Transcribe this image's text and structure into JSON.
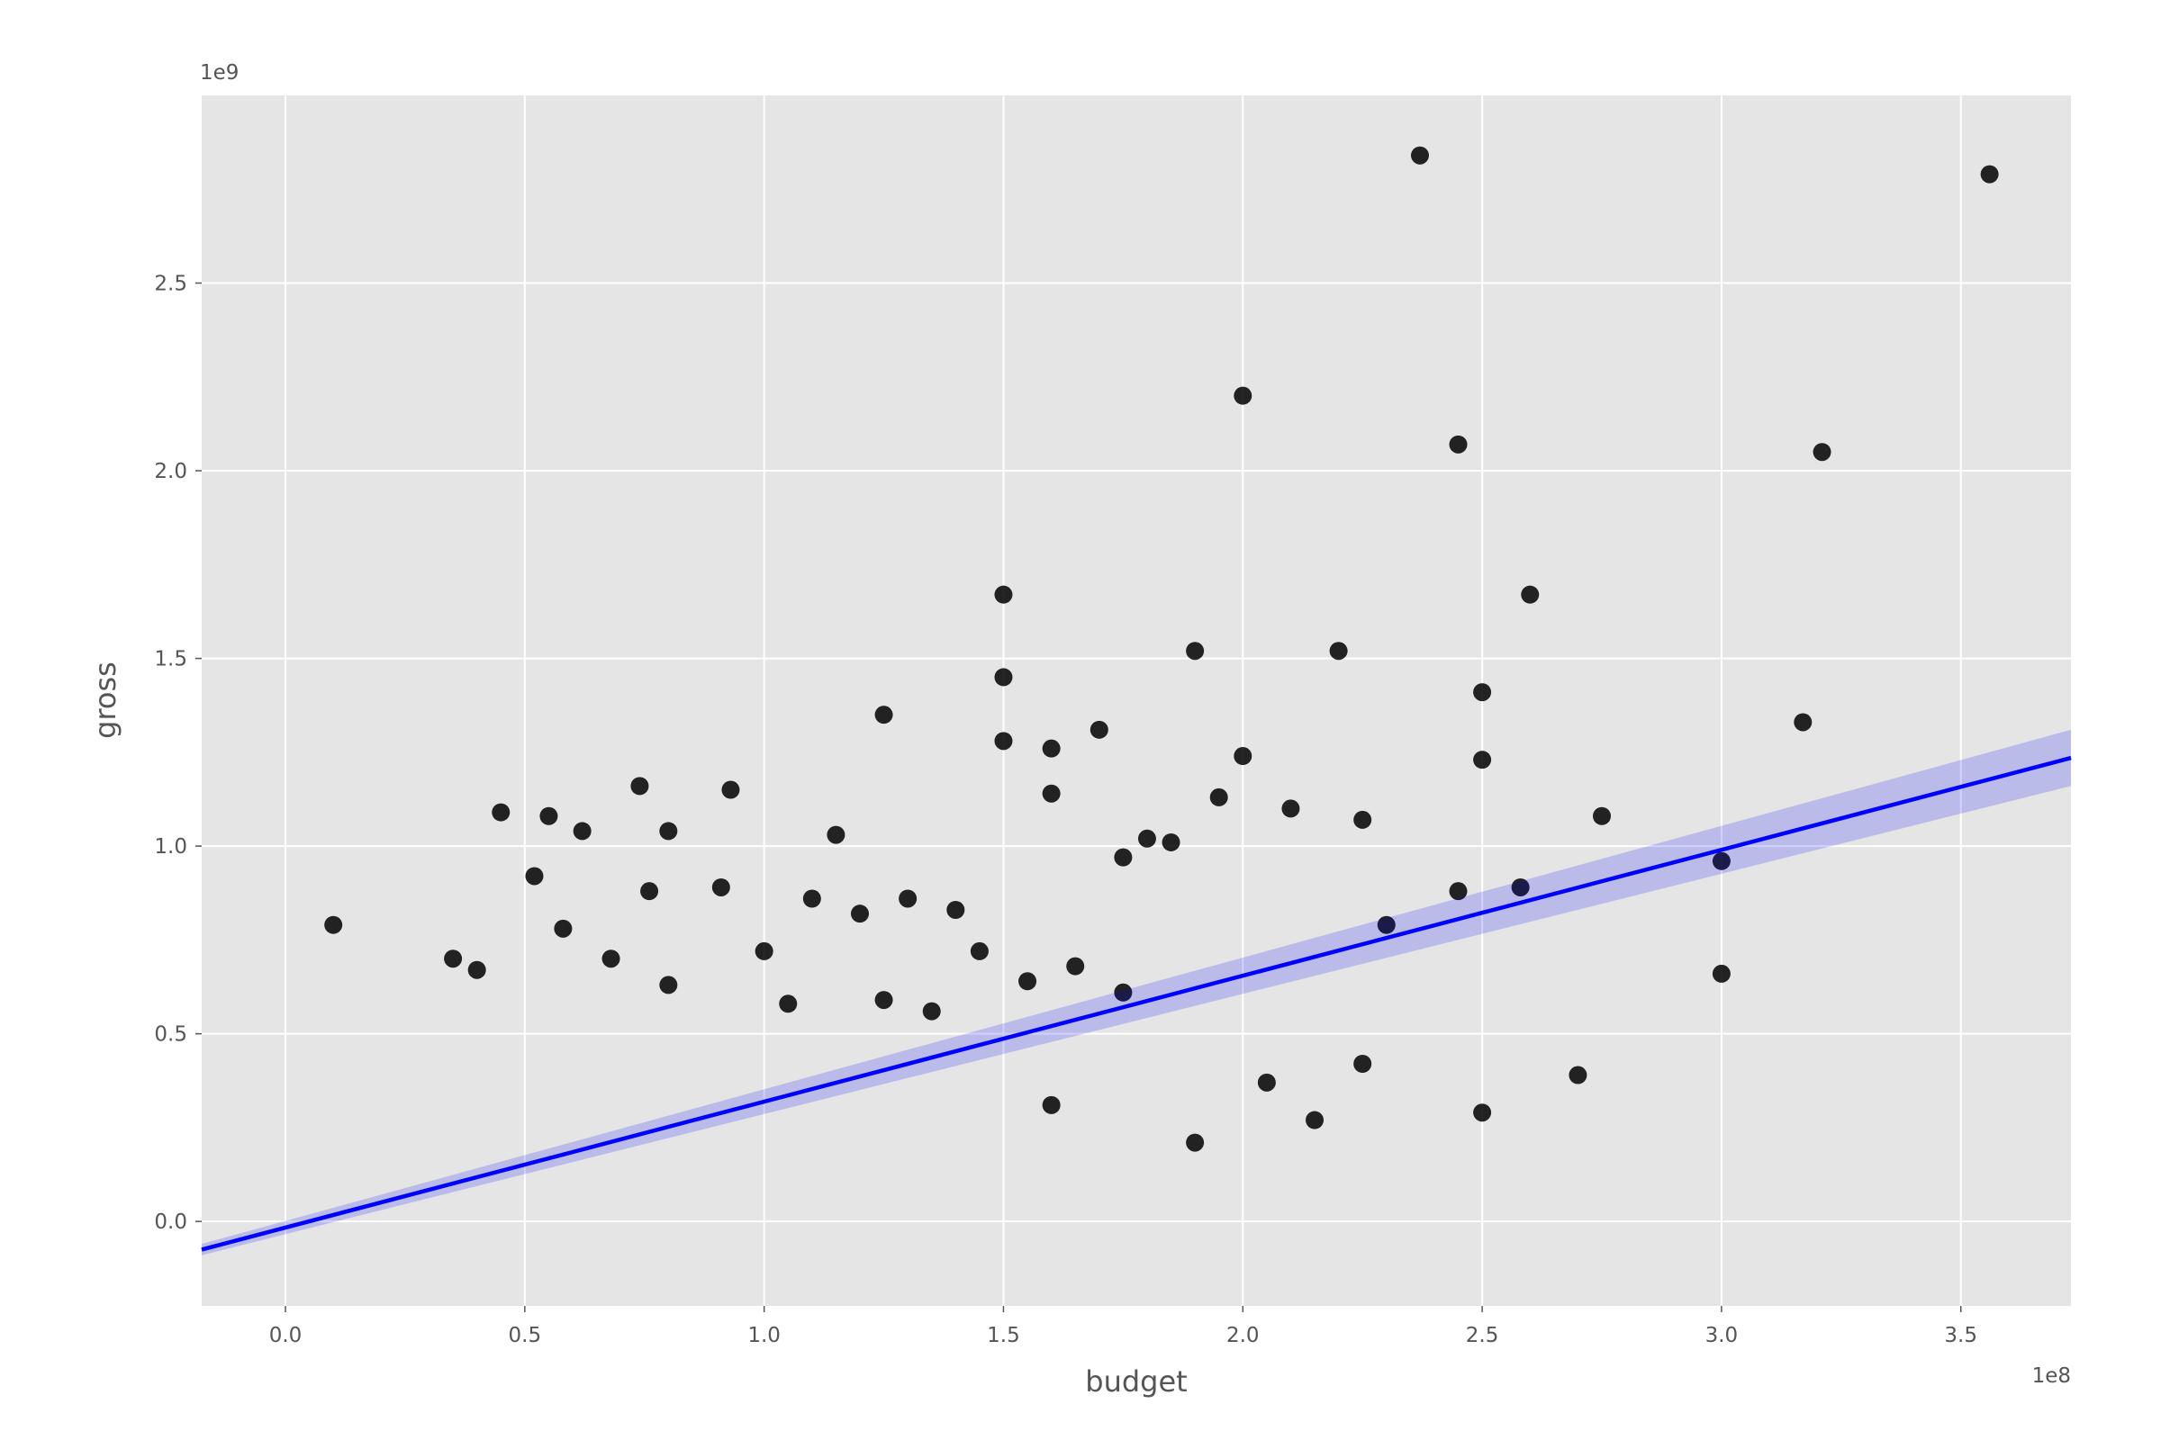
{
  "chart_data": {
    "type": "scatter",
    "title": "",
    "xlabel": "budget",
    "ylabel": "gross",
    "x_offset_label": "1e8",
    "y_offset_label": "1e9",
    "xlim": [
      -17500000,
      373000000
    ],
    "ylim": [
      -225000000,
      3000000000
    ],
    "grid": true,
    "x_ticks": [
      {
        "value": 0,
        "label": "0.0"
      },
      {
        "value": 50000000,
        "label": "0.5"
      },
      {
        "value": 100000000,
        "label": "1.0"
      },
      {
        "value": 150000000,
        "label": "1.5"
      },
      {
        "value": 200000000,
        "label": "2.0"
      },
      {
        "value": 250000000,
        "label": "2.5"
      },
      {
        "value": 300000000,
        "label": "3.0"
      },
      {
        "value": 350000000,
        "label": "3.5"
      }
    ],
    "y_ticks": [
      {
        "value": 0,
        "label": "0.0"
      },
      {
        "value": 500000000,
        "label": "0.5"
      },
      {
        "value": 1000000000,
        "label": "1.0"
      },
      {
        "value": 1500000000,
        "label": "1.5"
      },
      {
        "value": 2000000000,
        "label": "2.0"
      },
      {
        "value": 2500000000,
        "label": "2.5"
      }
    ],
    "regression": {
      "x": [
        -17500000,
        373000000
      ],
      "y": [
        -75000000,
        1235000000
      ],
      "ci_low": [
        -90000000,
        1160000000
      ],
      "ci_high": [
        -60000000,
        1310000000
      ]
    },
    "series": [
      {
        "x": [
          237000000,
          356000000,
          200000000,
          245000000,
          321000000,
          150000000,
          260000000,
          190000000,
          220000000,
          150000000,
          250000000,
          317000000,
          125000000,
          150000000,
          170000000,
          160000000,
          200000000,
          250000000,
          74000000,
          93000000,
          45000000,
          55000000,
          62000000,
          80000000,
          115000000,
          275000000,
          300000000,
          210000000,
          225000000,
          300000000,
          258000000,
          245000000,
          230000000,
          195000000,
          10000000,
          160000000,
          270000000,
          250000000,
          205000000,
          215000000,
          225000000,
          190000000,
          110000000,
          120000000,
          130000000,
          140000000,
          180000000,
          185000000,
          175000000,
          165000000,
          91000000,
          100000000,
          76000000,
          52000000,
          58000000,
          35000000,
          40000000,
          68000000,
          80000000,
          135000000,
          145000000,
          155000000,
          105000000,
          125000000,
          160000000,
          175000000
        ],
        "y": [
          2840000000,
          2790000000,
          2200000000,
          2070000000,
          2050000000,
          1670000000,
          1670000000,
          1520000000,
          1520000000,
          1450000000,
          1410000000,
          1330000000,
          1350000000,
          1280000000,
          1310000000,
          1260000000,
          1240000000,
          1230000000,
          1160000000,
          1150000000,
          1090000000,
          1080000000,
          1040000000,
          1040000000,
          1030000000,
          1080000000,
          960000000,
          1100000000,
          1070000000,
          660000000,
          890000000,
          880000000,
          790000000,
          1130000000,
          790000000,
          1140000000,
          390000000,
          290000000,
          370000000,
          270000000,
          420000000,
          210000000,
          860000000,
          820000000,
          860000000,
          830000000,
          1020000000,
          1010000000,
          970000000,
          680000000,
          890000000,
          720000000,
          880000000,
          920000000,
          780000000,
          700000000,
          670000000,
          700000000,
          630000000,
          560000000,
          720000000,
          640000000,
          580000000,
          590000000,
          310000000,
          610000000
        ]
      }
    ]
  }
}
